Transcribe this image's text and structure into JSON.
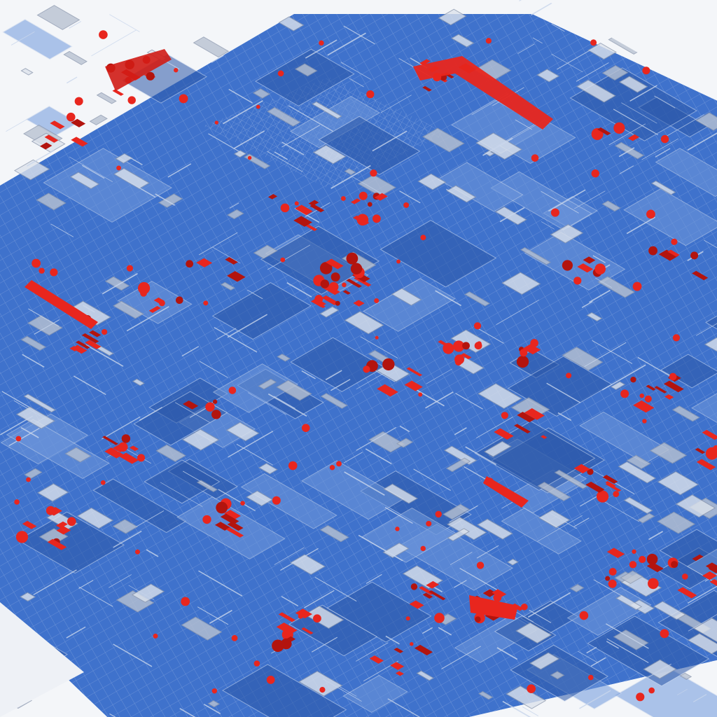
{
  "image": {
    "subject": "isometric-circuit-board-illustration",
    "colors": {
      "background": "#f4f6f9",
      "board_blue": "#3f72cc",
      "board_blue_light": "#6f98dc",
      "board_blue_dark": "#2c58a8",
      "trace_light": "#c9d6ec",
      "chip_grey": "#b9c2d2",
      "chip_grey_light": "#dde3ec",
      "component_red": "#e8261e",
      "component_red_dark": "#b3140e"
    }
  }
}
